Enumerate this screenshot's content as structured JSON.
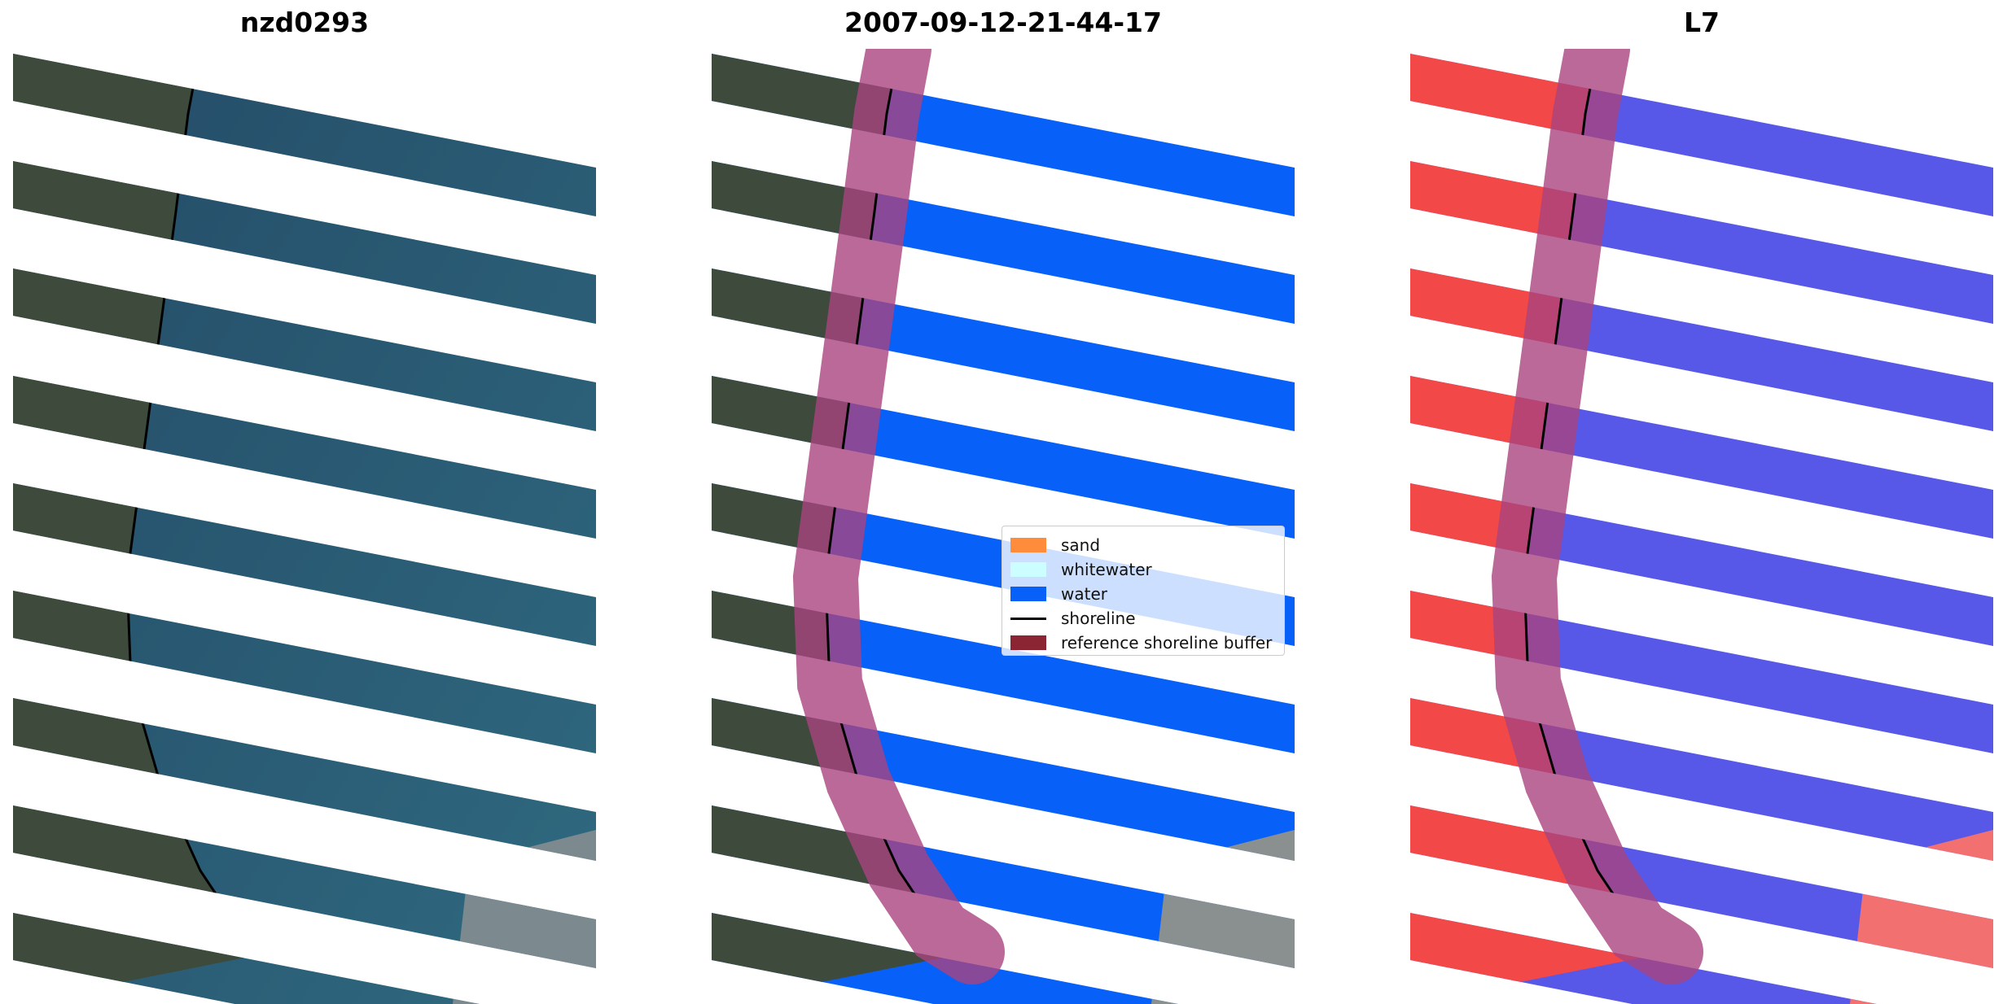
{
  "panels": [
    {
      "title": "nzd0293",
      "style": "rgb"
    },
    {
      "title": "2007-09-12-21-44-17",
      "style": "classified"
    },
    {
      "title": "L7",
      "style": "index"
    }
  ],
  "legend": {
    "items": [
      {
        "label": "sand",
        "color": "#ff8c3a",
        "kind": "patch"
      },
      {
        "label": "whitewater",
        "color": "#ccfdff",
        "kind": "patch"
      },
      {
        "label": "water",
        "color": "#0760f7",
        "kind": "patch"
      },
      {
        "label": "shoreline",
        "color": "#000000",
        "kind": "line"
      },
      {
        "label": "reference shoreline buffer",
        "color": "#8b2534",
        "kind": "patch"
      }
    ]
  },
  "colors": {
    "land_rgb": "#3e4a3c",
    "sea_rgb": "#244a66",
    "water_class": "#0760f7",
    "buffer": "#a9437f",
    "index_land": "#f24848",
    "index_water": "#5858e8"
  }
}
